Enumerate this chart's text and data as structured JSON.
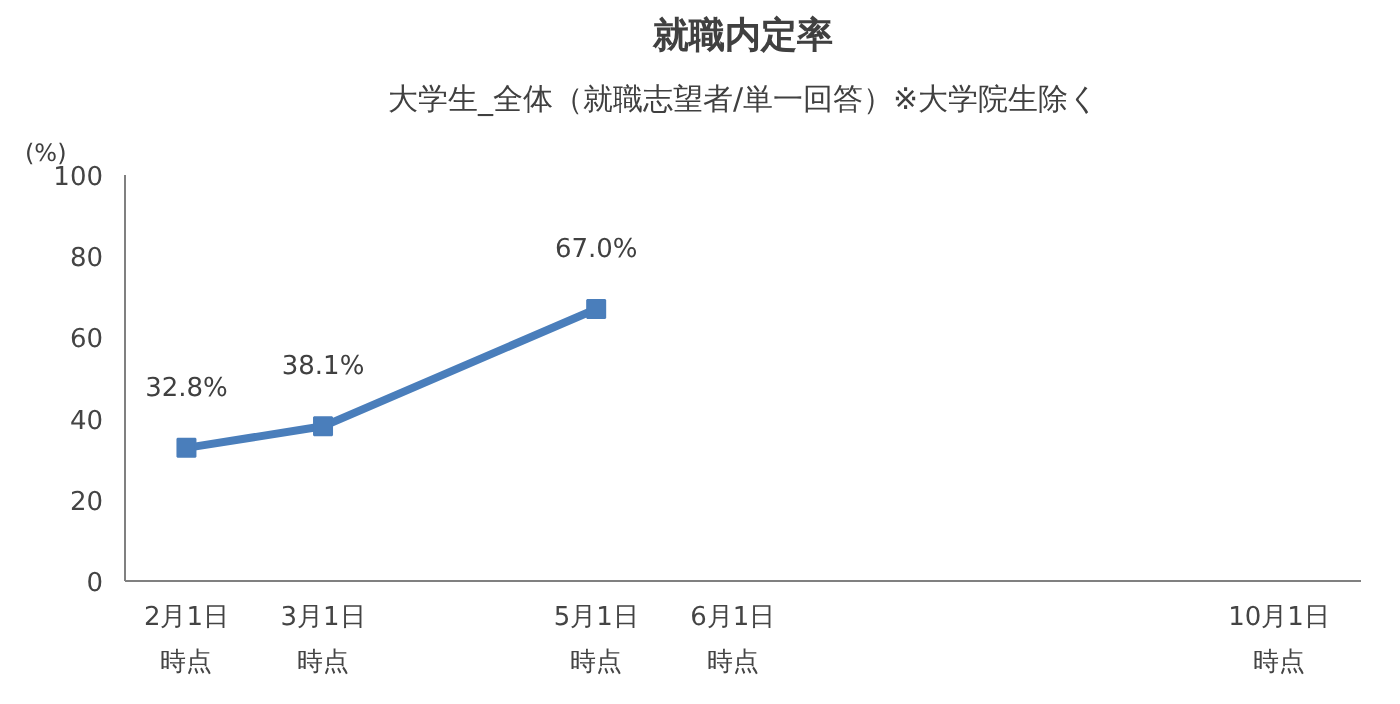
{
  "chart_data": {
    "type": "line",
    "title": "就職内定率",
    "subtitle": "大学生_全体（就職志望者/単一回答）※大学院生除く",
    "ylabel": "(%)",
    "categories": [
      "2月1日時点",
      "3月1日時点",
      null,
      "5月1日時点",
      "6月1日時点",
      null,
      null,
      null,
      "10月1日時点"
    ],
    "series": [
      {
        "color": "#4a7ebb",
        "values": [
          32.8,
          38.1,
          null,
          67.0,
          null,
          null,
          null,
          null,
          null
        ],
        "value_labels": [
          "32.8%",
          "38.1%",
          null,
          "67.0%",
          null,
          null,
          null,
          null,
          null
        ]
      }
    ],
    "ylim": [
      0,
      100
    ],
    "yticks": [
      0,
      20,
      40,
      60,
      80,
      100
    ],
    "grid": false,
    "marker": "square",
    "line_style": "solid"
  }
}
